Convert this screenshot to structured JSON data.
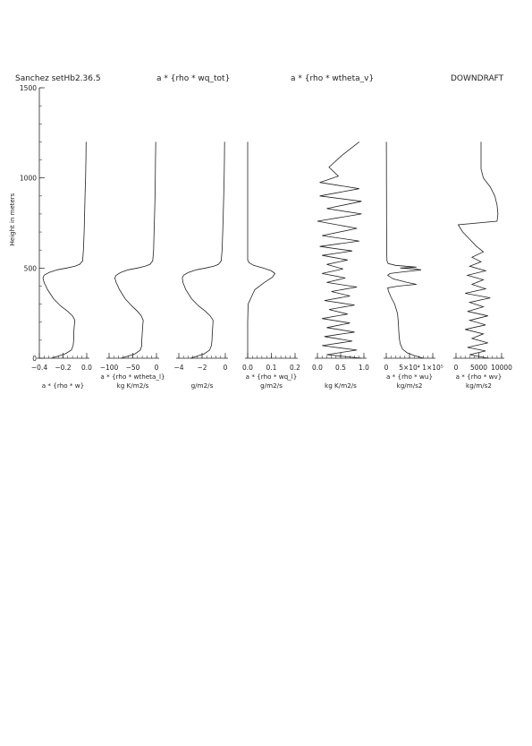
{
  "header": {
    "left": "Sanchez setHb2.36.5",
    "middle1": "a * {rho * wq_tot}",
    "middle2": "a * {rho * wtheta_v}",
    "right": "DOWNDRAFT"
  },
  "chart_data": {
    "type": "line",
    "ylabel": "Height in meters",
    "ylim": [
      0,
      1500
    ],
    "yticks": [
      "0",
      "500",
      "1000",
      "1500"
    ],
    "panels": [
      {
        "xlabel": [
          "a * {rho * w}"
        ],
        "xlim": [
          -0.4,
          0.0
        ],
        "xticks": [
          {
            "v": -0.4,
            "t": "−0.4"
          },
          {
            "v": -0.2,
            "t": "−0.2"
          },
          {
            "v": 0.0,
            "t": "0.0"
          }
        ],
        "profile": [
          [
            0,
            -0.3
          ],
          [
            10,
            -0.25
          ],
          [
            25,
            -0.18
          ],
          [
            45,
            -0.13
          ],
          [
            70,
            -0.115
          ],
          [
            100,
            -0.11
          ],
          [
            140,
            -0.11
          ],
          [
            180,
            -0.105
          ],
          [
            210,
            -0.1
          ],
          [
            235,
            -0.12
          ],
          [
            260,
            -0.16
          ],
          [
            290,
            -0.22
          ],
          [
            330,
            -0.28
          ],
          [
            380,
            -0.33
          ],
          [
            420,
            -0.36
          ],
          [
            445,
            -0.37
          ],
          [
            460,
            -0.36
          ],
          [
            475,
            -0.32
          ],
          [
            490,
            -0.25
          ],
          [
            500,
            -0.17
          ],
          [
            510,
            -0.1
          ],
          [
            520,
            -0.06
          ],
          [
            540,
            -0.035
          ],
          [
            600,
            -0.028
          ],
          [
            700,
            -0.022
          ],
          [
            800,
            -0.018
          ],
          [
            900,
            -0.014
          ],
          [
            1000,
            -0.01
          ],
          [
            1100,
            -0.007
          ],
          [
            1200,
            -0.005
          ]
        ]
      },
      {
        "xlabel": [
          "a * {rho * wtheta_l}",
          "kg K/m2/s"
        ],
        "xlim": [
          -100,
          0
        ],
        "xticks": [
          {
            "v": -100,
            "t": "−100"
          },
          {
            "v": -50,
            "t": "−50"
          },
          {
            "v": 0,
            "t": "0"
          }
        ],
        "profile": [
          [
            0,
            -75
          ],
          [
            10,
            -62
          ],
          [
            25,
            -45
          ],
          [
            45,
            -34
          ],
          [
            70,
            -31
          ],
          [
            100,
            -31
          ],
          [
            140,
            -30
          ],
          [
            180,
            -29
          ],
          [
            210,
            -28
          ],
          [
            235,
            -32
          ],
          [
            260,
            -40
          ],
          [
            290,
            -52
          ],
          [
            330,
            -66
          ],
          [
            380,
            -78
          ],
          [
            420,
            -85
          ],
          [
            445,
            -88
          ],
          [
            460,
            -85
          ],
          [
            475,
            -76
          ],
          [
            490,
            -60
          ],
          [
            500,
            -40
          ],
          [
            510,
            -24
          ],
          [
            520,
            -14
          ],
          [
            540,
            -8
          ],
          [
            600,
            -6
          ],
          [
            700,
            -5
          ],
          [
            800,
            -4
          ],
          [
            900,
            -3
          ],
          [
            1000,
            -2.5
          ],
          [
            1100,
            -2
          ],
          [
            1200,
            -1.5
          ]
        ]
      },
      {
        "xlabel": [
          "g/m2/s"
        ],
        "xlim": [
          -4,
          0
        ],
        "xticks": [
          {
            "v": -4,
            "t": "−4"
          },
          {
            "v": -2,
            "t": "−2"
          },
          {
            "v": 0,
            "t": "0"
          }
        ],
        "profile": [
          [
            0,
            -3.0
          ],
          [
            10,
            -2.5
          ],
          [
            25,
            -1.8
          ],
          [
            45,
            -1.35
          ],
          [
            70,
            -1.2
          ],
          [
            100,
            -1.15
          ],
          [
            140,
            -1.12
          ],
          [
            180,
            -1.08
          ],
          [
            210,
            -1.05
          ],
          [
            235,
            -1.3
          ],
          [
            260,
            -1.7
          ],
          [
            290,
            -2.3
          ],
          [
            330,
            -2.9
          ],
          [
            380,
            -3.4
          ],
          [
            420,
            -3.65
          ],
          [
            445,
            -3.7
          ],
          [
            460,
            -3.6
          ],
          [
            475,
            -3.2
          ],
          [
            490,
            -2.5
          ],
          [
            500,
            -1.7
          ],
          [
            510,
            -1.0
          ],
          [
            520,
            -0.6
          ],
          [
            540,
            -0.35
          ],
          [
            600,
            -0.28
          ],
          [
            700,
            -0.22
          ],
          [
            800,
            -0.18
          ],
          [
            900,
            -0.14
          ],
          [
            1000,
            -0.1
          ],
          [
            1100,
            -0.08
          ],
          [
            1200,
            -0.06
          ]
        ]
      },
      {
        "xlabel": [
          "a * {rho * wq_l}",
          "g/m2/s"
        ],
        "xlim": [
          0.0,
          0.2
        ],
        "xticks": [
          {
            "v": 0.0,
            "t": "0.0"
          },
          {
            "v": 0.1,
            "t": "0.1"
          },
          {
            "v": 0.2,
            "t": "0.2"
          }
        ],
        "profile": [
          [
            0,
            0
          ],
          [
            200,
            0
          ],
          [
            300,
            0.002
          ],
          [
            380,
            0.03
          ],
          [
            420,
            0.07
          ],
          [
            450,
            0.105
          ],
          [
            470,
            0.115
          ],
          [
            485,
            0.1
          ],
          [
            500,
            0.065
          ],
          [
            515,
            0.025
          ],
          [
            530,
            0.006
          ],
          [
            545,
            0
          ],
          [
            1200,
            0
          ]
        ]
      },
      {
        "xlabel": [
          "kg K/m2/s"
        ],
        "xlim": [
          0.0,
          1.0
        ],
        "xticks": [
          {
            "v": 0.0,
            "t": "0.0"
          },
          {
            "v": 0.5,
            "t": "0.5"
          },
          {
            "v": 1.0,
            "t": "1.0"
          }
        ],
        "profile": [
          [
            0,
            0.95
          ],
          [
            20,
            0.2
          ],
          [
            45,
            0.85
          ],
          [
            70,
            0.1
          ],
          [
            95,
            0.75
          ],
          [
            120,
            0.15
          ],
          [
            145,
            0.8
          ],
          [
            170,
            0.2
          ],
          [
            195,
            0.7
          ],
          [
            220,
            0.1
          ],
          [
            245,
            0.65
          ],
          [
            270,
            0.25
          ],
          [
            295,
            0.8
          ],
          [
            320,
            0.15
          ],
          [
            345,
            0.7
          ],
          [
            370,
            0.3
          ],
          [
            395,
            0.85
          ],
          [
            420,
            0.2
          ],
          [
            445,
            0.6
          ],
          [
            470,
            0.1
          ],
          [
            495,
            0.55
          ],
          [
            520,
            0.2
          ],
          [
            545,
            0.65
          ],
          [
            570,
            0.1
          ],
          [
            595,
            0.75
          ],
          [
            620,
            0.05
          ],
          [
            650,
            0.9
          ],
          [
            680,
            0.1
          ],
          [
            720,
            0.85
          ],
          [
            760,
            0.0
          ],
          [
            800,
            0.95
          ],
          [
            830,
            0.2
          ],
          [
            870,
            0.95
          ],
          [
            900,
            0.05
          ],
          [
            940,
            0.9
          ],
          [
            975,
            0.05
          ],
          [
            1010,
            0.45
          ],
          [
            1060,
            0.25
          ],
          [
            1130,
            0.55
          ],
          [
            1200,
            0.9
          ]
        ]
      },
      {
        "xlabel": [
          "a * {rho * wu}",
          "kg/m/s2"
        ],
        "xlim": [
          0,
          100000
        ],
        "xticks": [
          {
            "v": 0,
            "t": "0"
          },
          {
            "v": 50000,
            "t": "5×10⁴"
          },
          {
            "v": 100000,
            "t": "1×10⁵"
          }
        ],
        "profile": [
          [
            0,
            80000
          ],
          [
            15,
            60000
          ],
          [
            30,
            45000
          ],
          [
            50,
            35000
          ],
          [
            80,
            30000
          ],
          [
            110,
            28000
          ],
          [
            150,
            27000
          ],
          [
            200,
            26000
          ],
          [
            250,
            24000
          ],
          [
            300,
            18000
          ],
          [
            340,
            10000
          ],
          [
            370,
            5000
          ],
          [
            390,
            3000
          ],
          [
            400,
            25000
          ],
          [
            410,
            65000
          ],
          [
            420,
            45000
          ],
          [
            440,
            15000
          ],
          [
            460,
            3000
          ],
          [
            470,
            8000
          ],
          [
            480,
            40000
          ],
          [
            490,
            75000
          ],
          [
            495,
            60000
          ],
          [
            500,
            30000
          ],
          [
            505,
            65000
          ],
          [
            515,
            20000
          ],
          [
            525,
            4000
          ],
          [
            540,
            1500
          ],
          [
            600,
            1000
          ],
          [
            700,
            800
          ],
          [
            800,
            600
          ],
          [
            900,
            500
          ],
          [
            1000,
            400
          ],
          [
            1100,
            300
          ],
          [
            1200,
            200
          ]
        ]
      },
      {
        "xlabel": [
          "a * {rho * wv}",
          "kg/m/s2"
        ],
        "xlim": [
          0,
          10000
        ],
        "xticks": [
          {
            "v": 0,
            "t": "0"
          },
          {
            "v": 5000,
            "t": "5000"
          },
          {
            "v": 10000,
            "t": "10000"
          }
        ],
        "profile": [
          [
            0,
            7000
          ],
          [
            20,
            3000
          ],
          [
            40,
            6500
          ],
          [
            60,
            2500
          ],
          [
            85,
            7000
          ],
          [
            110,
            3500
          ],
          [
            135,
            6000
          ],
          [
            160,
            2000
          ],
          [
            185,
            6500
          ],
          [
            210,
            3000
          ],
          [
            235,
            7000
          ],
          [
            260,
            2500
          ],
          [
            285,
            6000
          ],
          [
            310,
            3000
          ],
          [
            335,
            7500
          ],
          [
            360,
            2000
          ],
          [
            385,
            6500
          ],
          [
            410,
            3500
          ],
          [
            435,
            6000
          ],
          [
            460,
            2500
          ],
          [
            485,
            6500
          ],
          [
            510,
            3000
          ],
          [
            535,
            5500
          ],
          [
            560,
            3500
          ],
          [
            590,
            6000
          ],
          [
            620,
            4500
          ],
          [
            660,
            3000
          ],
          [
            700,
            1500
          ],
          [
            740,
            500
          ],
          [
            760,
            9000
          ],
          [
            800,
            9200
          ],
          [
            850,
            9000
          ],
          [
            900,
            8500
          ],
          [
            950,
            7500
          ],
          [
            1000,
            6000
          ],
          [
            1050,
            5500
          ],
          [
            1100,
            5500
          ],
          [
            1200,
            5500
          ]
        ]
      }
    ]
  }
}
